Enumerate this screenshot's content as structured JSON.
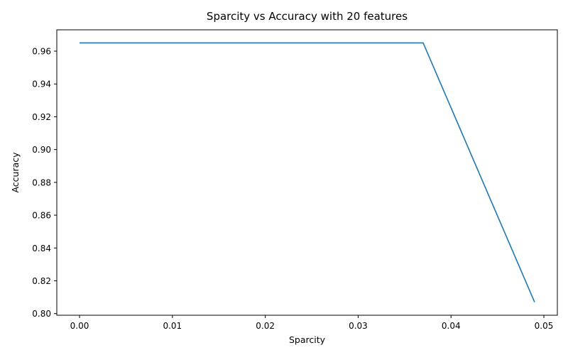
{
  "chart_data": {
    "type": "line",
    "title": "Sparcity vs Accuracy with 20 features",
    "xlabel": "Sparcity",
    "ylabel": "Accuracy",
    "xlim": [
      -0.00245,
      0.05145
    ],
    "ylim": [
      0.799,
      0.973
    ],
    "xticks": [
      0.0,
      0.01,
      0.02,
      0.03,
      0.04,
      0.05
    ],
    "xtick_labels": [
      "0.00",
      "0.01",
      "0.02",
      "0.03",
      "0.04",
      "0.05"
    ],
    "yticks": [
      0.8,
      0.82,
      0.84,
      0.86,
      0.88,
      0.9,
      0.92,
      0.94,
      0.96
    ],
    "ytick_labels": [
      "0.80",
      "0.82",
      "0.84",
      "0.86",
      "0.88",
      "0.90",
      "0.92",
      "0.94",
      "0.96"
    ],
    "grid": false,
    "series": [
      {
        "color": "#1f77b4",
        "x": [
          0.0,
          0.037,
          0.049
        ],
        "y": [
          0.965,
          0.965,
          0.807
        ]
      }
    ]
  }
}
